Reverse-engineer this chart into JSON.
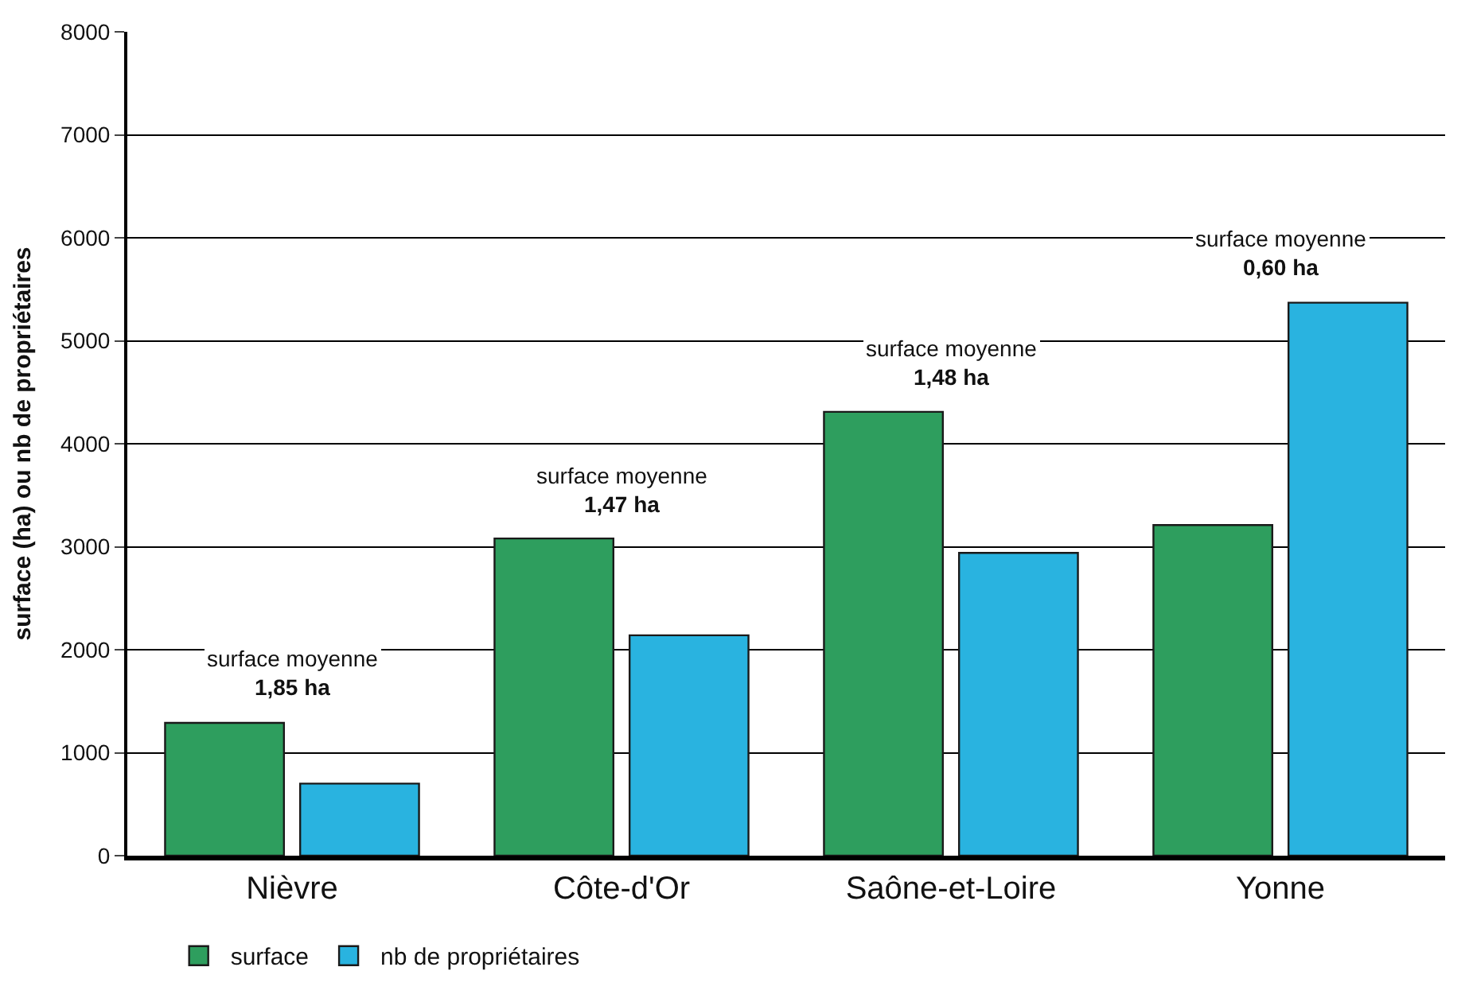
{
  "chart_data": {
    "type": "bar",
    "ylabel": "surface (ha) ou nb de propriétaires",
    "categories": [
      "Nièvre",
      "Côte-d'Or",
      "Saône-et-Loire",
      "Yonne"
    ],
    "series": [
      {
        "name": "surface",
        "color": "#2e9e5e",
        "values": [
          1290,
          3080,
          4310,
          3210
        ]
      },
      {
        "name": "nb de propriétaires",
        "color": "#29b3e0",
        "values": [
          700,
          2140,
          2940,
          5370
        ]
      }
    ],
    "ylim": [
      0,
      8000
    ],
    "yticks": [
      0,
      1000,
      2000,
      3000,
      4000,
      5000,
      6000,
      7000,
      8000
    ],
    "grid": "y",
    "legend": "bottom left",
    "annotations": [
      "surface moyenne\n1,85 ha",
      "surface moyenne\n1,47 ha",
      "surface moyenne\n1,48 ha",
      "surface moyenne\n0,60 ha"
    ]
  }
}
